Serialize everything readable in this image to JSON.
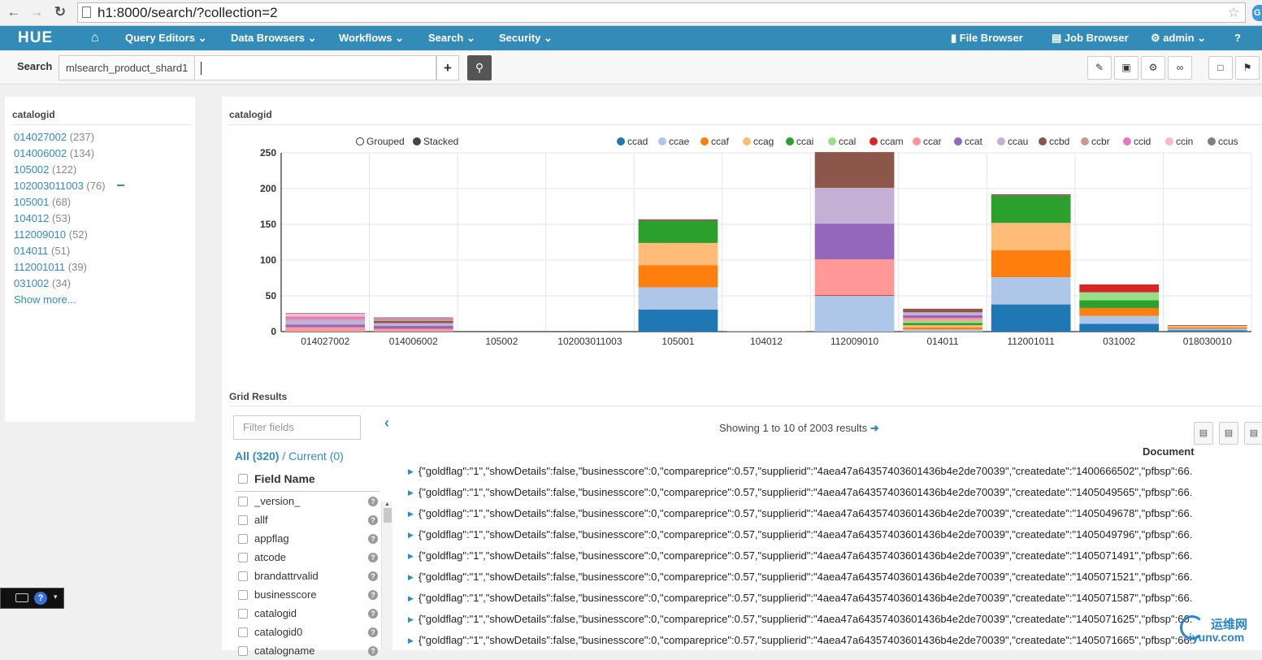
{
  "browser": {
    "url": "h1:8000/search/?collection=2"
  },
  "topnav": {
    "logo": "HUE",
    "items": [
      "Query Editors",
      "Data Browsers",
      "Workflows",
      "Search",
      "Security"
    ],
    "right_items": [
      "File Browser",
      "Job Browser",
      "admin"
    ]
  },
  "toolbar": {
    "label": "Search",
    "collection": "mlsearch_product_shard1",
    "query_value": "",
    "plus_label": "+"
  },
  "facet_panel": {
    "title": "catalogid",
    "items": [
      {
        "label": "014027002",
        "count": "(237)"
      },
      {
        "label": "014006002",
        "count": "(134)"
      },
      {
        "label": "105002",
        "count": "(122)"
      },
      {
        "label": "102003011003",
        "count": "(76)"
      },
      {
        "label": "105001",
        "count": "(68)"
      },
      {
        "label": "104012",
        "count": "(53)"
      },
      {
        "label": "112009010",
        "count": "(52)"
      },
      {
        "label": "014011",
        "count": "(51)"
      },
      {
        "label": "112001011",
        "count": "(39)"
      },
      {
        "label": "031002",
        "count": "(34)"
      }
    ],
    "show_more": "Show more..."
  },
  "chart_panel": {
    "title": "catalogid",
    "modes": [
      "Grouped",
      "Stacked"
    ],
    "selected_mode": "Stacked"
  },
  "chart_data": {
    "type": "bar",
    "stacked": true,
    "categories": [
      "014027002",
      "014006002",
      "105002",
      "102003011003",
      "105001",
      "104012",
      "112009010",
      "014011",
      "112001011",
      "031002",
      "018030010"
    ],
    "ylim": [
      0,
      250
    ],
    "yticks": [
      0,
      50,
      100,
      150,
      200,
      250
    ],
    "legend_position": "top-right",
    "series": [
      {
        "name": "ccad",
        "color": "#1f77b4",
        "values": [
          0,
          0,
          0,
          0,
          31,
          0,
          0,
          0,
          38,
          11,
          2
        ]
      },
      {
        "name": "ccae",
        "color": "#aec7e8",
        "values": [
          0,
          0,
          0,
          0,
          31,
          0,
          50,
          3,
          38,
          11,
          2
        ]
      },
      {
        "name": "ccaf",
        "color": "#ff7f0e",
        "values": [
          0,
          0,
          0,
          0,
          31,
          0,
          0,
          3,
          38,
          11,
          2
        ]
      },
      {
        "name": "ccag",
        "color": "#ffbb78",
        "values": [
          0,
          0,
          0,
          0,
          31,
          0,
          0,
          3,
          38,
          0,
          2
        ]
      },
      {
        "name": "ccai",
        "color": "#2ca02c",
        "values": [
          0,
          0,
          0,
          0,
          31,
          0,
          0,
          3,
          38,
          11,
          0
        ]
      },
      {
        "name": "ccal",
        "color": "#98df8a",
        "values": [
          0,
          0,
          0,
          0,
          0,
          0,
          0,
          3,
          0,
          11,
          0
        ]
      },
      {
        "name": "ccam",
        "color": "#d62728",
        "values": [
          0,
          0,
          0,
          0,
          0,
          0,
          1,
          0,
          0,
          11,
          0
        ]
      },
      {
        "name": "ccar",
        "color": "#ff9896",
        "values": [
          6,
          4,
          0,
          0,
          0,
          0,
          50,
          4,
          0,
          0,
          0
        ]
      },
      {
        "name": "ccat",
        "color": "#9467bd",
        "values": [
          4,
          4,
          0,
          0,
          0,
          0,
          50,
          4,
          0,
          0,
          0
        ]
      },
      {
        "name": "ccau",
        "color": "#c5b0d5",
        "values": [
          6,
          4,
          0,
          0,
          0,
          0,
          50,
          4,
          0,
          0,
          0
        ]
      },
      {
        "name": "ccbd",
        "color": "#8c564b",
        "values": [
          0,
          3,
          0,
          0,
          2,
          0,
          50,
          5,
          2,
          0,
          1
        ]
      },
      {
        "name": "ccbr",
        "color": "#c49c94",
        "values": [
          2,
          2,
          0,
          0,
          0,
          1,
          0,
          0,
          0,
          0,
          0
        ]
      },
      {
        "name": "ccid",
        "color": "#e377c2",
        "values": [
          3,
          2,
          0,
          0,
          0,
          0,
          0,
          0,
          0,
          0,
          0
        ]
      },
      {
        "name": "ccin",
        "color": "#f7b6d2",
        "values": [
          4,
          0,
          0,
          0,
          0,
          0,
          0,
          0,
          0,
          0,
          0
        ]
      },
      {
        "name": "ccus",
        "color": "#7f7f7f",
        "values": [
          1,
          1,
          0,
          0,
          0,
          0,
          0,
          0,
          0,
          0,
          0
        ]
      }
    ]
  },
  "grid": {
    "title": "Grid Results",
    "filter_placeholder": "Filter fields",
    "all_label": "All (320)",
    "separator": "/",
    "current_label": "Current (0)",
    "field_header": "Field Name",
    "fields": [
      "_version_",
      "allf",
      "appflag",
      "atcode",
      "brandattrvalid",
      "businesscore",
      "catalogid",
      "catalogid0",
      "catalogname"
    ],
    "showing_text": "Showing 1 to 10 of 2003 results",
    "column_header": "Document",
    "rows": [
      "{\"goldflag\":\"1\",\"showDetails\":false,\"businesscore\":0,\"compareprice\":0.57,\"supplierid\":\"4aea47a64357403601436b4e2de70039\",\"createdate\":\"1400666502\",\"pfbsp\":66.",
      "{\"goldflag\":\"1\",\"showDetails\":false,\"businesscore\":0,\"compareprice\":0.57,\"supplierid\":\"4aea47a64357403601436b4e2de70039\",\"createdate\":\"1405049565\",\"pfbsp\":66.",
      "{\"goldflag\":\"1\",\"showDetails\":false,\"businesscore\":0,\"compareprice\":0.57,\"supplierid\":\"4aea47a64357403601436b4e2de70039\",\"createdate\":\"1405049678\",\"pfbsp\":66.",
      "{\"goldflag\":\"1\",\"showDetails\":false,\"businesscore\":0,\"compareprice\":0.57,\"supplierid\":\"4aea47a64357403601436b4e2de70039\",\"createdate\":\"1405049796\",\"pfbsp\":66.",
      "{\"goldflag\":\"1\",\"showDetails\":false,\"businesscore\":0,\"compareprice\":0.57,\"supplierid\":\"4aea47a64357403601436b4e2de70039\",\"createdate\":\"1405071491\",\"pfbsp\":66.",
      "{\"goldflag\":\"1\",\"showDetails\":false,\"businesscore\":0,\"compareprice\":0.57,\"supplierid\":\"4aea47a64357403601436b4e2de70039\",\"createdate\":\"1405071521\",\"pfbsp\":66.",
      "{\"goldflag\":\"1\",\"showDetails\":false,\"businesscore\":0,\"compareprice\":0.57,\"supplierid\":\"4aea47a64357403601436b4e2de70039\",\"createdate\":\"1405071587\",\"pfbsp\":66.",
      "{\"goldflag\":\"1\",\"showDetails\":false,\"businesscore\":0,\"compareprice\":0.57,\"supplierid\":\"4aea47a64357403601436b4e2de70039\",\"createdate\":\"1405071625\",\"pfbsp\":66.",
      "{\"goldflag\":\"1\",\"showDetails\":false,\"businesscore\":0,\"compareprice\":0.57,\"supplierid\":\"4aea47a64357403601436b4e2de70039\",\"createdate\":\"1405071665\",\"pfbsp\":66."
    ]
  },
  "watermark": {
    "name": "运维网",
    "site": "iyunv.com"
  }
}
